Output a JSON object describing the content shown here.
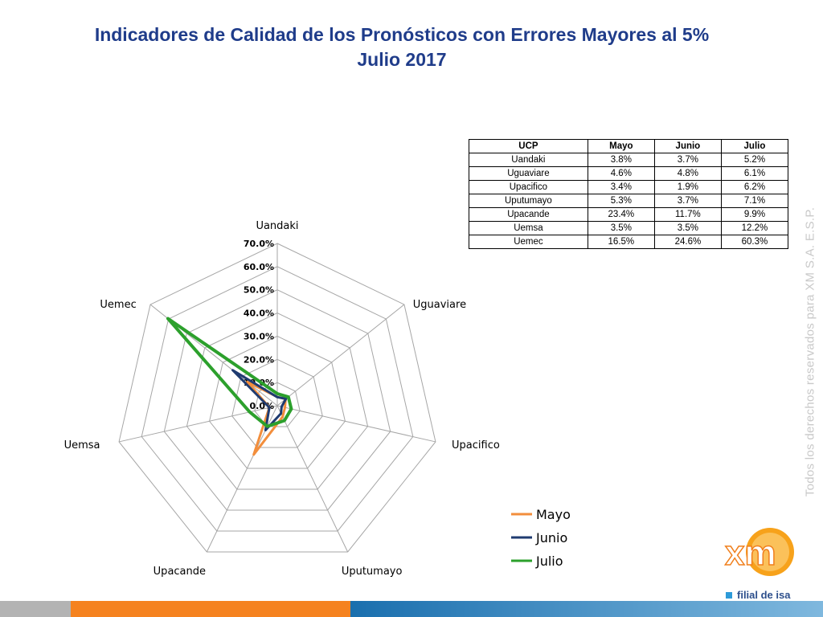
{
  "title": {
    "line1": "Indicadores de Calidad de los Pronósticos con Errores Mayores al 5%",
    "line2": "Julio 2017"
  },
  "chart_data": {
    "type": "radar",
    "categories": [
      "Uandaki",
      "Uguaviare",
      "Upacifico",
      "Uputumayo",
      "Upacande",
      "Uemsa",
      "Uemec"
    ],
    "series": [
      {
        "name": "Mayo",
        "values": [
          3.8,
          4.6,
          3.4,
          5.3,
          23.4,
          3.5,
          16.5
        ],
        "color": "#f28e3c"
      },
      {
        "name": "Junio",
        "values": [
          3.7,
          4.8,
          1.9,
          3.7,
          11.7,
          3.5,
          24.6
        ],
        "color": "#1f3b70"
      },
      {
        "name": "Julio",
        "values": [
          5.2,
          6.1,
          6.2,
          7.1,
          9.9,
          12.2,
          60.3
        ],
        "color": "#2ca02c"
      }
    ],
    "ticks": [
      "0.0%",
      "10.0%",
      "20.0%",
      "30.0%",
      "40.0%",
      "50.0%",
      "60.0%",
      "70.0%"
    ],
    "rmax": 70,
    "legend_position": "bottom-right"
  },
  "table": {
    "headers": [
      "UCP",
      "Mayo",
      "Junio",
      "Julio"
    ],
    "rows": [
      [
        "Uandaki",
        "3.8%",
        "3.7%",
        "5.2%"
      ],
      [
        "Uguaviare",
        "4.6%",
        "4.8%",
        "6.1%"
      ],
      [
        "Upacifico",
        "3.4%",
        "1.9%",
        "6.2%"
      ],
      [
        "Uputumayo",
        "5.3%",
        "3.7%",
        "7.1%"
      ],
      [
        "Upacande",
        "23.4%",
        "11.7%",
        "9.9%"
      ],
      [
        "Uemsa",
        "3.5%",
        "3.5%",
        "12.2%"
      ],
      [
        "Uemec",
        "16.5%",
        "24.6%",
        "60.3%"
      ]
    ]
  },
  "watermark": "Todos los derechos reservados para XM S.A. E.S.P.",
  "logo": {
    "text": "xm",
    "caption": "filial de isa"
  },
  "colors": {
    "title": "#1f3c8a",
    "orange": "#f5821f",
    "blue": "#1a6fae",
    "gray": "#b3b3b3"
  }
}
